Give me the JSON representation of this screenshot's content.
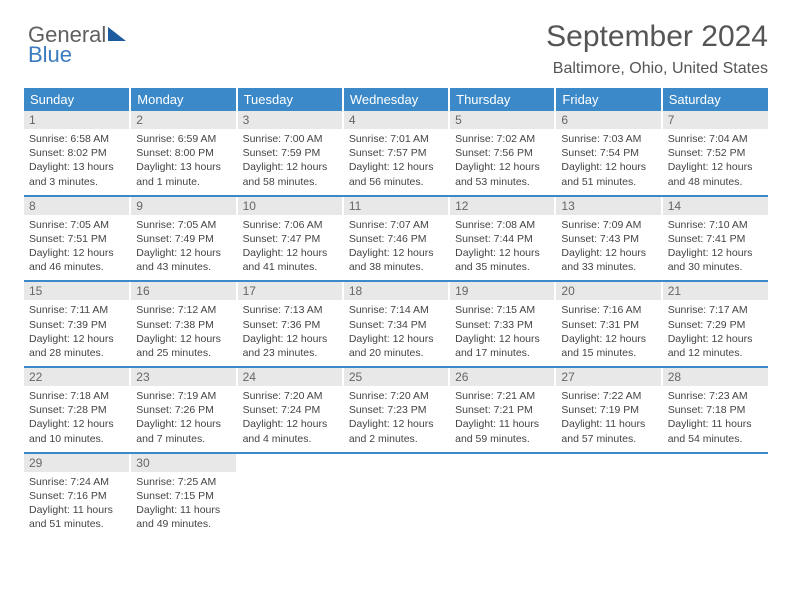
{
  "brand": {
    "part1": "General",
    "part2": "Blue"
  },
  "title": "September 2024",
  "subtitle": "Baltimore, Ohio, United States",
  "colors": {
    "header_bg": "#3b89c9",
    "daynum_bg": "#e8e8e8",
    "row_divider": "#3b89c9",
    "text": "#444444",
    "title_color": "#555555"
  },
  "typography": {
    "title_fontsize": 30,
    "subtitle_fontsize": 16,
    "header_fontsize": 13,
    "daynum_fontsize": 12,
    "content_fontsize": 10.5
  },
  "weekdays": [
    "Sunday",
    "Monday",
    "Tuesday",
    "Wednesday",
    "Thursday",
    "Friday",
    "Saturday"
  ],
  "weeks": [
    [
      {
        "d": "1",
        "sr": "Sunrise: 6:58 AM",
        "ss": "Sunset: 8:02 PM",
        "dl": "Daylight: 13 hours and 3 minutes."
      },
      {
        "d": "2",
        "sr": "Sunrise: 6:59 AM",
        "ss": "Sunset: 8:00 PM",
        "dl": "Daylight: 13 hours and 1 minute."
      },
      {
        "d": "3",
        "sr": "Sunrise: 7:00 AM",
        "ss": "Sunset: 7:59 PM",
        "dl": "Daylight: 12 hours and 58 minutes."
      },
      {
        "d": "4",
        "sr": "Sunrise: 7:01 AM",
        "ss": "Sunset: 7:57 PM",
        "dl": "Daylight: 12 hours and 56 minutes."
      },
      {
        "d": "5",
        "sr": "Sunrise: 7:02 AM",
        "ss": "Sunset: 7:56 PM",
        "dl": "Daylight: 12 hours and 53 minutes."
      },
      {
        "d": "6",
        "sr": "Sunrise: 7:03 AM",
        "ss": "Sunset: 7:54 PM",
        "dl": "Daylight: 12 hours and 51 minutes."
      },
      {
        "d": "7",
        "sr": "Sunrise: 7:04 AM",
        "ss": "Sunset: 7:52 PM",
        "dl": "Daylight: 12 hours and 48 minutes."
      }
    ],
    [
      {
        "d": "8",
        "sr": "Sunrise: 7:05 AM",
        "ss": "Sunset: 7:51 PM",
        "dl": "Daylight: 12 hours and 46 minutes."
      },
      {
        "d": "9",
        "sr": "Sunrise: 7:05 AM",
        "ss": "Sunset: 7:49 PM",
        "dl": "Daylight: 12 hours and 43 minutes."
      },
      {
        "d": "10",
        "sr": "Sunrise: 7:06 AM",
        "ss": "Sunset: 7:47 PM",
        "dl": "Daylight: 12 hours and 41 minutes."
      },
      {
        "d": "11",
        "sr": "Sunrise: 7:07 AM",
        "ss": "Sunset: 7:46 PM",
        "dl": "Daylight: 12 hours and 38 minutes."
      },
      {
        "d": "12",
        "sr": "Sunrise: 7:08 AM",
        "ss": "Sunset: 7:44 PM",
        "dl": "Daylight: 12 hours and 35 minutes."
      },
      {
        "d": "13",
        "sr": "Sunrise: 7:09 AM",
        "ss": "Sunset: 7:43 PM",
        "dl": "Daylight: 12 hours and 33 minutes."
      },
      {
        "d": "14",
        "sr": "Sunrise: 7:10 AM",
        "ss": "Sunset: 7:41 PM",
        "dl": "Daylight: 12 hours and 30 minutes."
      }
    ],
    [
      {
        "d": "15",
        "sr": "Sunrise: 7:11 AM",
        "ss": "Sunset: 7:39 PM",
        "dl": "Daylight: 12 hours and 28 minutes."
      },
      {
        "d": "16",
        "sr": "Sunrise: 7:12 AM",
        "ss": "Sunset: 7:38 PM",
        "dl": "Daylight: 12 hours and 25 minutes."
      },
      {
        "d": "17",
        "sr": "Sunrise: 7:13 AM",
        "ss": "Sunset: 7:36 PM",
        "dl": "Daylight: 12 hours and 23 minutes."
      },
      {
        "d": "18",
        "sr": "Sunrise: 7:14 AM",
        "ss": "Sunset: 7:34 PM",
        "dl": "Daylight: 12 hours and 20 minutes."
      },
      {
        "d": "19",
        "sr": "Sunrise: 7:15 AM",
        "ss": "Sunset: 7:33 PM",
        "dl": "Daylight: 12 hours and 17 minutes."
      },
      {
        "d": "20",
        "sr": "Sunrise: 7:16 AM",
        "ss": "Sunset: 7:31 PM",
        "dl": "Daylight: 12 hours and 15 minutes."
      },
      {
        "d": "21",
        "sr": "Sunrise: 7:17 AM",
        "ss": "Sunset: 7:29 PM",
        "dl": "Daylight: 12 hours and 12 minutes."
      }
    ],
    [
      {
        "d": "22",
        "sr": "Sunrise: 7:18 AM",
        "ss": "Sunset: 7:28 PM",
        "dl": "Daylight: 12 hours and 10 minutes."
      },
      {
        "d": "23",
        "sr": "Sunrise: 7:19 AM",
        "ss": "Sunset: 7:26 PM",
        "dl": "Daylight: 12 hours and 7 minutes."
      },
      {
        "d": "24",
        "sr": "Sunrise: 7:20 AM",
        "ss": "Sunset: 7:24 PM",
        "dl": "Daylight: 12 hours and 4 minutes."
      },
      {
        "d": "25",
        "sr": "Sunrise: 7:20 AM",
        "ss": "Sunset: 7:23 PM",
        "dl": "Daylight: 12 hours and 2 minutes."
      },
      {
        "d": "26",
        "sr": "Sunrise: 7:21 AM",
        "ss": "Sunset: 7:21 PM",
        "dl": "Daylight: 11 hours and 59 minutes."
      },
      {
        "d": "27",
        "sr": "Sunrise: 7:22 AM",
        "ss": "Sunset: 7:19 PM",
        "dl": "Daylight: 11 hours and 57 minutes."
      },
      {
        "d": "28",
        "sr": "Sunrise: 7:23 AM",
        "ss": "Sunset: 7:18 PM",
        "dl": "Daylight: 11 hours and 54 minutes."
      }
    ],
    [
      {
        "d": "29",
        "sr": "Sunrise: 7:24 AM",
        "ss": "Sunset: 7:16 PM",
        "dl": "Daylight: 11 hours and 51 minutes."
      },
      {
        "d": "30",
        "sr": "Sunrise: 7:25 AM",
        "ss": "Sunset: 7:15 PM",
        "dl": "Daylight: 11 hours and 49 minutes."
      },
      null,
      null,
      null,
      null,
      null
    ]
  ]
}
